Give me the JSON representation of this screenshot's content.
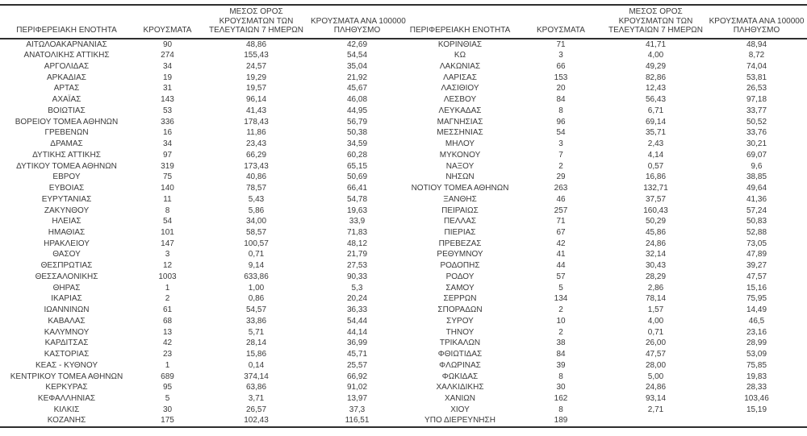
{
  "headers": {
    "region": "ΠΕΡΙΦΕΡΕΙΑΚΗ ΕΝΟΤΗΤΑ",
    "cases": "ΚΡΟΥΣΜΑΤΑ",
    "avg7": "ΜΕΣΟΣ ΟΡΟΣ\nΚΡΟΥΣΜΑΤΩΝ ΤΩΝ\nΤΕΛΕΥΤΑΙΩΝ 7 ΗΜΕΡΩΝ",
    "per100k": "ΚΡΟΥΣΜΑΤΑ ΑΝΑ 100000\nΠΛΗΘΥΣΜΟ"
  },
  "colors": {
    "text": "#3a3a3a",
    "rule": "#2e2e2e",
    "background": "#ffffff"
  },
  "left_rows": [
    [
      "ΑΙΤΩΛΟΑΚΑΡΝΑΝΙΑΣ",
      "90",
      "48,86",
      "42,69"
    ],
    [
      "ΑΝΑΤΟΛΙΚΗΣ ΑΤΤΙΚΗΣ",
      "274",
      "155,43",
      "54,54"
    ],
    [
      "ΑΡΓΟΛΙΔΑΣ",
      "34",
      "24,57",
      "35,04"
    ],
    [
      "ΑΡΚΑΔΙΑΣ",
      "19",
      "19,29",
      "21,92"
    ],
    [
      "ΑΡΤΑΣ",
      "31",
      "19,57",
      "45,67"
    ],
    [
      "ΑΧΑΪΑΣ",
      "143",
      "96,14",
      "46,08"
    ],
    [
      "ΒΟΙΩΤΙΑΣ",
      "53",
      "41,43",
      "44,95"
    ],
    [
      "ΒΟΡΕΙΟΥ ΤΟΜΕΑ ΑΘΗΝΩΝ",
      "336",
      "178,43",
      "56,79"
    ],
    [
      "ΓΡΕΒΕΝΩΝ",
      "16",
      "11,86",
      "50,38"
    ],
    [
      "ΔΡΑΜΑΣ",
      "34",
      "23,43",
      "34,59"
    ],
    [
      "ΔΥΤΙΚΗΣ ΑΤΤΙΚΗΣ",
      "97",
      "66,29",
      "60,28"
    ],
    [
      "ΔΥΤΙΚΟΥ ΤΟΜΕΑ ΑΘΗΝΩΝ",
      "319",
      "173,43",
      "65,15"
    ],
    [
      "ΕΒΡΟΥ",
      "75",
      "40,86",
      "50,69"
    ],
    [
      "ΕΥΒΟΙΑΣ",
      "140",
      "78,57",
      "66,41"
    ],
    [
      "ΕΥΡΥΤΑΝΙΑΣ",
      "11",
      "5,43",
      "54,78"
    ],
    [
      "ΖΑΚΥΝΘΟΥ",
      "8",
      "5,86",
      "19,63"
    ],
    [
      "ΗΛΕΙΑΣ",
      "54",
      "34,00",
      "33,9"
    ],
    [
      "ΗΜΑΘΙΑΣ",
      "101",
      "58,57",
      "71,83"
    ],
    [
      "ΗΡΑΚΛΕΙΟΥ",
      "147",
      "100,57",
      "48,12"
    ],
    [
      "ΘΑΣΟΥ",
      "3",
      "0,71",
      "21,79"
    ],
    [
      "ΘΕΣΠΡΩΤΙΑΣ",
      "12",
      "9,14",
      "27,53"
    ],
    [
      "ΘΕΣΣΑΛΟΝΙΚΗΣ",
      "1003",
      "633,86",
      "90,33"
    ],
    [
      "ΘΗΡΑΣ",
      "1",
      "1,00",
      "5,3"
    ],
    [
      "ΙΚΑΡΙΑΣ",
      "2",
      "0,86",
      "20,24"
    ],
    [
      "ΙΩΑΝΝΙΝΩΝ",
      "61",
      "54,57",
      "36,33"
    ],
    [
      "ΚΑΒΑΛΑΣ",
      "68",
      "33,86",
      "54,44"
    ],
    [
      "ΚΑΛΥΜΝΟΥ",
      "13",
      "5,71",
      "44,14"
    ],
    [
      "ΚΑΡΔΙΤΣΑΣ",
      "42",
      "28,14",
      "36,99"
    ],
    [
      "ΚΑΣΤΟΡΙΑΣ",
      "23",
      "15,86",
      "45,71"
    ],
    [
      "ΚΕΑΣ - ΚΥΘΝΟΥ",
      "1",
      "0,14",
      "25,57"
    ],
    [
      "ΚΕΝΤΡΙΚΟΥ ΤΟΜΕΑ ΑΘΗΝΩΝ",
      "689",
      "374,14",
      "66,92"
    ],
    [
      "ΚΕΡΚΥΡΑΣ",
      "95",
      "63,86",
      "91,02"
    ],
    [
      "ΚΕΦΑΛΛΗΝΙΑΣ",
      "5",
      "3,71",
      "13,97"
    ],
    [
      "ΚΙΛΚΙΣ",
      "30",
      "26,57",
      "37,3"
    ],
    [
      "ΚΟΖΑΝΗΣ",
      "175",
      "102,43",
      "116,51"
    ]
  ],
  "right_rows": [
    [
      "ΚΟΡΙΝΘΙΑΣ",
      "71",
      "41,71",
      "48,94"
    ],
    [
      "ΚΩ",
      "3",
      "4,00",
      "8,72"
    ],
    [
      "ΛΑΚΩΝΙΑΣ",
      "66",
      "49,29",
      "74,04"
    ],
    [
      "ΛΑΡΙΣΑΣ",
      "153",
      "82,86",
      "53,81"
    ],
    [
      "ΛΑΣΙΘΙΟΥ",
      "20",
      "12,43",
      "26,53"
    ],
    [
      "ΛΕΣΒΟΥ",
      "84",
      "56,43",
      "97,18"
    ],
    [
      "ΛΕΥΚΑΔΑΣ",
      "8",
      "6,71",
      "33,77"
    ],
    [
      "ΜΑΓΝΗΣΙΑΣ",
      "96",
      "69,14",
      "50,52"
    ],
    [
      "ΜΕΣΣΗΝΙΑΣ",
      "54",
      "35,71",
      "33,76"
    ],
    [
      "ΜΗΛΟΥ",
      "3",
      "2,43",
      "30,21"
    ],
    [
      "ΜΥΚΟΝΟΥ",
      "7",
      "4,14",
      "69,07"
    ],
    [
      "ΝΑΞΟΥ",
      "2",
      "0,57",
      "9,6"
    ],
    [
      "ΝΗΣΩΝ",
      "29",
      "16,86",
      "38,85"
    ],
    [
      "ΝΟΤΙΟΥ ΤΟΜΕΑ ΑΘΗΝΩΝ",
      "263",
      "132,71",
      "49,64"
    ],
    [
      "ΞΑΝΘΗΣ",
      "46",
      "37,57",
      "41,36"
    ],
    [
      "ΠΕΙΡΑΙΩΣ",
      "257",
      "160,43",
      "57,24"
    ],
    [
      "ΠΕΛΛΑΣ",
      "71",
      "50,29",
      "50,83"
    ],
    [
      "ΠΙΕΡΙΑΣ",
      "67",
      "45,86",
      "52,88"
    ],
    [
      "ΠΡΕΒΕΖΑΣ",
      "42",
      "24,86",
      "73,05"
    ],
    [
      "ΡΕΘΥΜΝΟΥ",
      "41",
      "32,14",
      "47,89"
    ],
    [
      "ΡΟΔΟΠΗΣ",
      "44",
      "30,43",
      "39,27"
    ],
    [
      "ΡΟΔΟΥ",
      "57",
      "28,29",
      "47,57"
    ],
    [
      "ΣΑΜΟΥ",
      "5",
      "2,86",
      "15,16"
    ],
    [
      "ΣΕΡΡΩΝ",
      "134",
      "78,14",
      "75,95"
    ],
    [
      "ΣΠΟΡΑΔΩΝ",
      "2",
      "1,57",
      "14,49"
    ],
    [
      "ΣΥΡΟΥ",
      "10",
      "4,00",
      "46,5"
    ],
    [
      "ΤΗΝΟΥ",
      "2",
      "0,71",
      "23,16"
    ],
    [
      "ΤΡΙΚΑΛΩΝ",
      "38",
      "26,00",
      "28,99"
    ],
    [
      "ΦΘΙΩΤΙΔΑΣ",
      "84",
      "47,57",
      "53,09"
    ],
    [
      "ΦΛΩΡΙΝΑΣ",
      "39",
      "28,00",
      "75,85"
    ],
    [
      "ΦΩΚΙΔΑΣ",
      "8",
      "5,00",
      "19,83"
    ],
    [
      "ΧΑΛΚΙΔΙΚΗΣ",
      "30",
      "24,86",
      "28,33"
    ],
    [
      "ΧΑΝΙΩΝ",
      "162",
      "93,14",
      "103,46"
    ],
    [
      "ΧΙΟΥ",
      "8",
      "2,71",
      "15,19"
    ],
    [
      "ΥΠΟ ΔΙΕΡΕΥΝΗΣΗ",
      "189",
      "",
      ""
    ]
  ]
}
